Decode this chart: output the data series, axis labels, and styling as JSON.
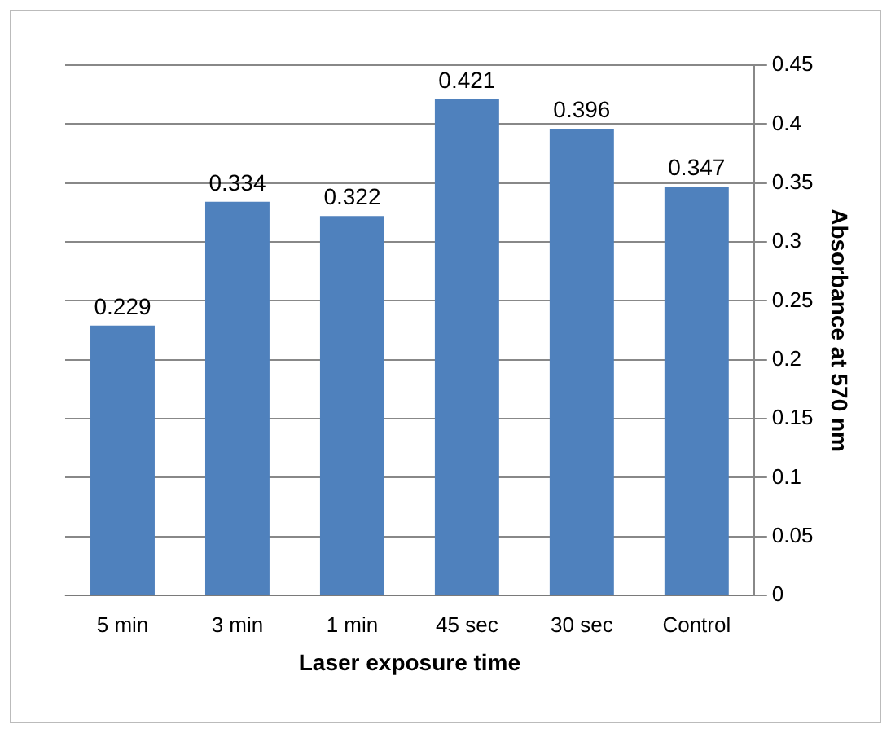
{
  "chart_data": {
    "type": "bar",
    "xlabel": "Laser exposure time",
    "ylabel": "Absorbance at 570 nm",
    "categories": [
      "5 min",
      "3 min",
      "1 min",
      "45 sec",
      "30 sec",
      "Control"
    ],
    "values": [
      0.229,
      0.334,
      0.322,
      0.421,
      0.396,
      0.347
    ],
    "color": "#4f81bd",
    "ylim": [
      0,
      0.45
    ],
    "yticks": [
      0,
      0.05,
      0.1,
      0.15,
      0.2,
      0.25,
      0.3,
      0.35,
      0.4,
      0.45
    ],
    "grid": "y",
    "data_labels": true,
    "legend": false
  }
}
